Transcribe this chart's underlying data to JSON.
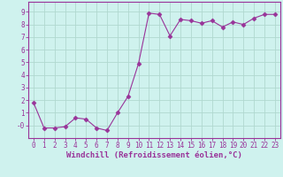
{
  "x": [
    0,
    1,
    2,
    3,
    4,
    5,
    6,
    7,
    8,
    9,
    10,
    11,
    12,
    13,
    14,
    15,
    16,
    17,
    18,
    19,
    20,
    21,
    22,
    23
  ],
  "y": [
    1.8,
    -0.2,
    -0.2,
    -0.1,
    0.6,
    0.5,
    -0.2,
    -0.4,
    1.0,
    2.3,
    4.9,
    8.9,
    8.8,
    7.1,
    8.4,
    8.3,
    8.1,
    8.3,
    7.8,
    8.2,
    8.0,
    8.5,
    8.8,
    8.8
  ],
  "line_color": "#993399",
  "marker": "D",
  "marker_size": 2.5,
  "bg_color": "#cff2ee",
  "grid_color": "#b0d8d0",
  "xlabel": "Windchill (Refroidissement éolien,°C)",
  "xlim": [
    -0.5,
    23.5
  ],
  "ylim": [
    -1.0,
    9.8
  ],
  "xticks": [
    0,
    1,
    2,
    3,
    4,
    5,
    6,
    7,
    8,
    9,
    10,
    11,
    12,
    13,
    14,
    15,
    16,
    17,
    18,
    19,
    20,
    21,
    22,
    23
  ],
  "yticks": [
    0,
    1,
    2,
    3,
    4,
    5,
    6,
    7,
    8,
    9
  ],
  "ytick_labels": [
    "-0",
    "1",
    "2",
    "3",
    "4",
    "5",
    "6",
    "7",
    "8",
    "9"
  ],
  "label_color": "#993399",
  "tick_fontsize": 5.5,
  "xlabel_fontsize": 6.5
}
